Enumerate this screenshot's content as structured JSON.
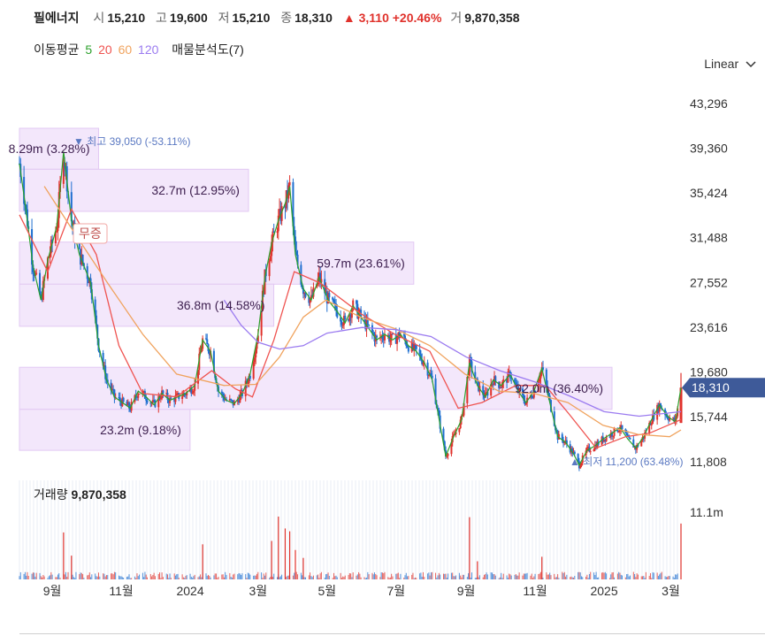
{
  "header": {
    "stock_name": "필에너지",
    "open_label": "시",
    "open": "15,210",
    "high_label": "고",
    "high": "19,600",
    "low_label": "저",
    "low": "15,210",
    "close_label": "종",
    "close": "18,310",
    "change": "▲ 3,110 +20.46%",
    "volume_label": "거",
    "volume": "9,870,358"
  },
  "ma_legend": {
    "label": "이동평균",
    "periods": [
      "5",
      "20",
      "60",
      "120"
    ],
    "colors": [
      "#2ca02c",
      "#ef5350",
      "#f0a35e",
      "#9b7bf0"
    ],
    "volume_profile": "매물분석도(7)"
  },
  "scale_button": "Linear",
  "volume_panel": {
    "label": "거래량",
    "value": "9,870,358",
    "axis_label": "11.1m"
  },
  "annotations": {
    "high": "▼ 최고 39,050 (-53.11%)",
    "low": "▲ 최저 11,200 (63.48%)",
    "event": "무증",
    "current_price": "18,310"
  },
  "colors": {
    "up": "#e0322c",
    "down": "#1e6fd0",
    "profile": "#f3e7fb",
    "profile_border": "#e2c9f3",
    "price_tag": "#3e5a99"
  },
  "chart_data": {
    "type": "candlestick",
    "title": "",
    "y_ticks": [
      "43,296",
      "39,360",
      "35,424",
      "31,488",
      "27,552",
      "23,616",
      "19,680",
      "15,744",
      "11,808"
    ],
    "ylim": [
      10400,
      44600
    ],
    "x_ticks": [
      "9월",
      "11월",
      "2024",
      "3월",
      "5월",
      "7월",
      "9월",
      "11월",
      "2025",
      "3월"
    ],
    "x_tick_dates": [
      "2023-09-01",
      "2023-11-01",
      "2024-01-01",
      "2024-03-01",
      "2024-05-01",
      "2024-07-01",
      "2024-09-01",
      "2024-11-01",
      "2025-01-01",
      "2025-03-01"
    ],
    "x_range": [
      "2023-08-03",
      "2025-03-10"
    ],
    "price_path": [
      [
        "2023-08-03",
        38000
      ],
      [
        "2023-08-08",
        34500
      ],
      [
        "2023-08-15",
        29000
      ],
      [
        "2023-08-22",
        26000
      ],
      [
        "2023-08-28",
        29500
      ],
      [
        "2023-09-05",
        32500
      ],
      [
        "2023-09-11",
        39050
      ],
      [
        "2023-09-18",
        33000
      ],
      [
        "2023-09-25",
        30000
      ],
      [
        "2023-10-05",
        27500
      ],
      [
        "2023-10-12",
        22000
      ],
      [
        "2023-10-19",
        19000
      ],
      [
        "2023-10-26",
        17500
      ],
      [
        "2023-11-02",
        17000
      ],
      [
        "2023-11-09",
        16500
      ],
      [
        "2023-11-16",
        18000
      ],
      [
        "2023-11-23",
        17500
      ],
      [
        "2023-11-30",
        16800
      ],
      [
        "2023-12-07",
        17800
      ],
      [
        "2023-12-14",
        17200
      ],
      [
        "2023-12-21",
        17500
      ],
      [
        "2023-12-28",
        17800
      ],
      [
        "2024-01-05",
        18500
      ],
      [
        "2024-01-12",
        22500
      ],
      [
        "2024-01-19",
        21500
      ],
      [
        "2024-01-26",
        18000
      ],
      [
        "2024-02-02",
        17200
      ],
      [
        "2024-02-09",
        16900
      ],
      [
        "2024-02-16",
        17800
      ],
      [
        "2024-02-23",
        19500
      ],
      [
        "2024-03-01",
        23000
      ],
      [
        "2024-03-07",
        28000
      ],
      [
        "2024-03-13",
        31000
      ],
      [
        "2024-03-19",
        33000
      ],
      [
        "2024-03-25",
        34500
      ],
      [
        "2024-03-29",
        36000
      ],
      [
        "2024-04-03",
        30000
      ],
      [
        "2024-04-10",
        27000
      ],
      [
        "2024-04-17",
        26000
      ],
      [
        "2024-04-24",
        28000
      ],
      [
        "2024-05-02",
        26000
      ],
      [
        "2024-05-10",
        25000
      ],
      [
        "2024-05-17",
        24000
      ],
      [
        "2024-05-24",
        25500
      ],
      [
        "2024-05-31",
        24500
      ],
      [
        "2024-06-07",
        23500
      ],
      [
        "2024-06-14",
        22500
      ],
      [
        "2024-06-21",
        23000
      ],
      [
        "2024-06-28",
        22500
      ],
      [
        "2024-07-05",
        23000
      ],
      [
        "2024-07-12",
        22000
      ],
      [
        "2024-07-19",
        21500
      ],
      [
        "2024-07-26",
        20500
      ],
      [
        "2024-08-02",
        19000
      ],
      [
        "2024-08-09",
        15000
      ],
      [
        "2024-08-14",
        12300
      ],
      [
        "2024-08-21",
        14000
      ],
      [
        "2024-08-28",
        15500
      ],
      [
        "2024-09-04",
        20500
      ],
      [
        "2024-09-11",
        18500
      ],
      [
        "2024-09-18",
        17500
      ],
      [
        "2024-09-25",
        19000
      ],
      [
        "2024-10-02",
        18500
      ],
      [
        "2024-10-10",
        19500
      ],
      [
        "2024-10-17",
        18000
      ],
      [
        "2024-10-24",
        17000
      ],
      [
        "2024-10-31",
        18000
      ],
      [
        "2024-11-07",
        20000
      ],
      [
        "2024-11-14",
        17000
      ],
      [
        "2024-11-21",
        14000
      ],
      [
        "2024-11-28",
        13500
      ],
      [
        "2024-12-05",
        12500
      ],
      [
        "2024-12-10",
        11500
      ],
      [
        "2024-12-17",
        12800
      ],
      [
        "2024-12-24",
        13200
      ],
      [
        "2024-12-31",
        13800
      ],
      [
        "2025-01-08",
        14300
      ],
      [
        "2025-01-15",
        14800
      ],
      [
        "2025-01-22",
        13800
      ],
      [
        "2025-01-29",
        13000
      ],
      [
        "2025-02-05",
        14000
      ],
      [
        "2025-02-12",
        15500
      ],
      [
        "2025-02-19",
        16800
      ],
      [
        "2025-02-26",
        15800
      ],
      [
        "2025-03-05",
        15300
      ],
      [
        "2025-03-10",
        18310
      ]
    ],
    "ma": [
      {
        "period": "20",
        "points": [
          [
            "2023-08-03",
            33500
          ],
          [
            "2023-08-28",
            28500
          ],
          [
            "2023-09-18",
            34000
          ],
          [
            "2023-10-10",
            30000
          ],
          [
            "2023-10-30",
            22000
          ],
          [
            "2023-11-20",
            17800
          ],
          [
            "2023-12-20",
            17500
          ],
          [
            "2024-01-20",
            19800
          ],
          [
            "2024-02-10",
            18200
          ],
          [
            "2024-02-25",
            17500
          ],
          [
            "2024-03-15",
            22500
          ],
          [
            "2024-04-02",
            28500
          ],
          [
            "2024-04-25",
            27500
          ],
          [
            "2024-05-31",
            24800
          ],
          [
            "2024-06-30",
            23000
          ],
          [
            "2024-07-31",
            21500
          ],
          [
            "2024-08-25",
            16500
          ],
          [
            "2024-09-15",
            17000
          ],
          [
            "2024-10-15",
            18500
          ],
          [
            "2024-11-10",
            18500
          ],
          [
            "2024-12-01",
            16000
          ],
          [
            "2024-12-25",
            13000
          ],
          [
            "2025-01-20",
            14000
          ],
          [
            "2025-02-10",
            14300
          ],
          [
            "2025-03-10",
            15500
          ]
        ]
      },
      {
        "period": "60",
        "points": [
          [
            "2023-08-25",
            36000
          ],
          [
            "2023-09-20",
            32000
          ],
          [
            "2023-10-20",
            27500
          ],
          [
            "2023-11-20",
            23000
          ],
          [
            "2023-12-20",
            19500
          ],
          [
            "2024-01-31",
            18500
          ],
          [
            "2024-02-28",
            18600
          ],
          [
            "2024-03-20",
            21000
          ],
          [
            "2024-04-10",
            24500
          ],
          [
            "2024-04-30",
            26000
          ],
          [
            "2024-05-31",
            24500
          ],
          [
            "2024-06-30",
            23500
          ],
          [
            "2024-07-31",
            22000
          ],
          [
            "2024-08-31",
            19500
          ],
          [
            "2024-09-30",
            18000
          ],
          [
            "2024-10-31",
            17800
          ],
          [
            "2024-11-30",
            17000
          ],
          [
            "2024-12-31",
            15000
          ],
          [
            "2025-01-31",
            14200
          ],
          [
            "2025-02-28",
            14000
          ],
          [
            "2025-03-10",
            14600
          ]
        ]
      },
      {
        "period": "120",
        "points": [
          [
            "2024-01-31",
            26000
          ],
          [
            "2024-02-15",
            23800
          ],
          [
            "2024-03-01",
            22300
          ],
          [
            "2024-03-20",
            21700
          ],
          [
            "2024-04-10",
            22000
          ],
          [
            "2024-05-01",
            23100
          ],
          [
            "2024-06-01",
            23600
          ],
          [
            "2024-07-01",
            23400
          ],
          [
            "2024-08-01",
            22800
          ],
          [
            "2024-09-01",
            21000
          ],
          [
            "2024-10-01",
            19800
          ],
          [
            "2024-11-01",
            18800
          ],
          [
            "2024-12-01",
            17600
          ],
          [
            "2025-01-01",
            16200
          ],
          [
            "2025-02-01",
            15800
          ],
          [
            "2025-03-10",
            16200
          ]
        ]
      }
    ],
    "volume_profile": [
      {
        "label": "8.29m (3.28%)",
        "from": 37500,
        "to": 41100,
        "share": 3.28
      },
      {
        "label": "32.7m (12.95%)",
        "from": 33800,
        "to": 37500,
        "share": 12.95
      },
      {
        "label": "59.7m (23.61%)",
        "from": 27400,
        "to": 31100,
        "share": 23.61
      },
      {
        "label": "36.8m (14.58%)",
        "from": 23700,
        "to": 27400,
        "share": 14.58
      },
      {
        "label": "92.0m (36.40%)",
        "from": 16400,
        "to": 20100,
        "share": 36.4
      },
      {
        "label": "23.2m (9.18%)",
        "from": 12800,
        "to": 16400,
        "share": 9.18
      }
    ],
    "volume_max_label_value": 11100000,
    "volume_spikes": [
      [
        "2023-09-11",
        8300000
      ],
      [
        "2023-09-18",
        4200000
      ],
      [
        "2024-01-12",
        6200000
      ],
      [
        "2024-03-13",
        6800000
      ],
      [
        "2024-03-19",
        11100000
      ],
      [
        "2024-03-25",
        9000000
      ],
      [
        "2024-03-29",
        8500000
      ],
      [
        "2024-04-03",
        5200000
      ],
      [
        "2024-04-10",
        3800000
      ],
      [
        "2024-09-04",
        11000000
      ],
      [
        "2024-09-11",
        3200000
      ],
      [
        "2024-11-07",
        4000000
      ],
      [
        "2025-03-10",
        9870358
      ]
    ]
  }
}
